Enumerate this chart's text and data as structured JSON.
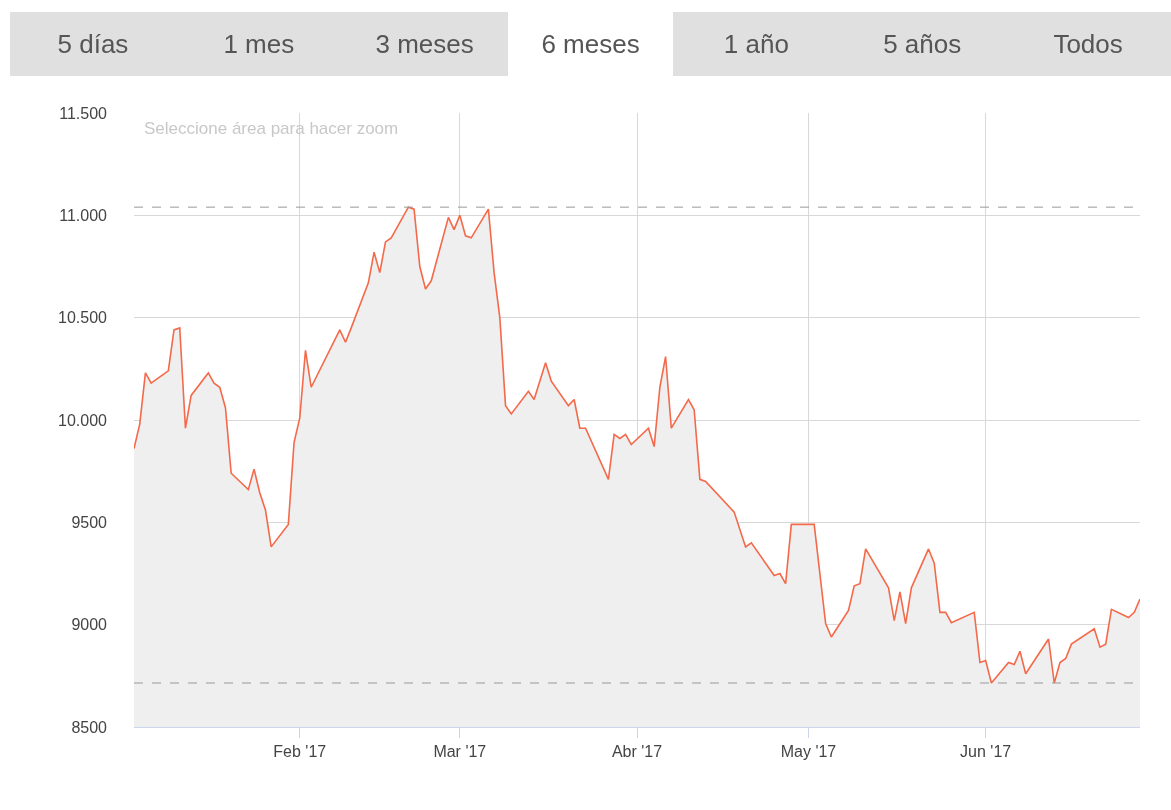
{
  "chart_data": {
    "type": "area",
    "annotations": [
      "Seleccione área para hacer zoom",
      "5 días",
      "1 mes",
      "3 meses",
      "6 meses",
      "1 año",
      "5 años",
      "Todos"
    ],
    "x": [
      "2017-01-03",
      "2017-01-04",
      "2017-01-05",
      "2017-01-06",
      "2017-01-09",
      "2017-01-10",
      "2017-01-11",
      "2017-01-12",
      "2017-01-13",
      "2017-01-16",
      "2017-01-17",
      "2017-01-18",
      "2017-01-19",
      "2017-01-20",
      "2017-01-23",
      "2017-01-24",
      "2017-01-25",
      "2017-01-26",
      "2017-01-27",
      "2017-01-30",
      "2017-01-31",
      "2017-02-01",
      "2017-02-02",
      "2017-02-03",
      "2017-02-08",
      "2017-02-09",
      "2017-02-10",
      "2017-02-13",
      "2017-02-14",
      "2017-02-15",
      "2017-02-16",
      "2017-02-17",
      "2017-02-20",
      "2017-02-21",
      "2017-02-22",
      "2017-02-23",
      "2017-02-24",
      "2017-02-27",
      "2017-02-28",
      "2017-03-01",
      "2017-03-02",
      "2017-03-03",
      "2017-03-06",
      "2017-03-07",
      "2017-03-08",
      "2017-03-09",
      "2017-03-10",
      "2017-03-13",
      "2017-03-14",
      "2017-03-16",
      "2017-03-17",
      "2017-03-20",
      "2017-03-21",
      "2017-03-22",
      "2017-03-23",
      "2017-03-27",
      "2017-03-28",
      "2017-03-29",
      "2017-03-30",
      "2017-03-31",
      "2017-04-03",
      "2017-04-04",
      "2017-04-05",
      "2017-04-06",
      "2017-04-07",
      "2017-04-10",
      "2017-04-11",
      "2017-04-12",
      "2017-04-13",
      "2017-04-18",
      "2017-04-20",
      "2017-04-21",
      "2017-04-25",
      "2017-04-26",
      "2017-04-27",
      "2017-04-28",
      "2017-05-02",
      "2017-05-04",
      "2017-05-05",
      "2017-05-08",
      "2017-05-09",
      "2017-05-10",
      "2017-05-11",
      "2017-05-15",
      "2017-05-16",
      "2017-05-17",
      "2017-05-18",
      "2017-05-19",
      "2017-05-22",
      "2017-05-23",
      "2017-05-24",
      "2017-05-25",
      "2017-05-26",
      "2017-05-30",
      "2017-05-31",
      "2017-06-01",
      "2017-06-02",
      "2017-06-05",
      "2017-06-06",
      "2017-06-07",
      "2017-06-08",
      "2017-06-12",
      "2017-06-13",
      "2017-06-14",
      "2017-06-15",
      "2017-06-16",
      "2017-06-20",
      "2017-06-21",
      "2017-06-22",
      "2017-06-23",
      "2017-06-26",
      "2017-06-27",
      "2017-06-28"
    ],
    "series": [
      {
        "color": "#f4694a",
        "values": [
          9860,
          9980,
          10230,
          10180,
          10240,
          10440,
          10450,
          9960,
          10120,
          10230,
          10180,
          10160,
          10060,
          9740,
          9660,
          9760,
          9645,
          9560,
          9380,
          9490,
          9890,
          10010,
          10340,
          10160,
          10440,
          10380,
          10450,
          10670,
          10820,
          10720,
          10870,
          10890,
          11040,
          11030,
          10750,
          10640,
          10680,
          10990,
          10930,
          11000,
          10900,
          10890,
          11030,
          10720,
          10500,
          10070,
          10030,
          10140,
          10100,
          10280,
          10190,
          10070,
          10100,
          9960,
          9960,
          9710,
          9930,
          9910,
          9930,
          9880,
          9960,
          9870,
          10160,
          10310,
          9960,
          10100,
          10050,
          9710,
          9700,
          9550,
          9380,
          9400,
          9240,
          9250,
          9200,
          9490,
          9490,
          9005,
          8940,
          9070,
          9190,
          9200,
          9370,
          9180,
          9020,
          9160,
          9005,
          9180,
          9370,
          9300,
          9060,
          9060,
          9010,
          9060,
          8815,
          8825,
          8715,
          8815,
          8805,
          8870,
          8760,
          8930,
          8715,
          8815,
          8835,
          8905,
          8980,
          8890,
          8905,
          9075,
          9035,
          9060,
          9125
        ]
      }
    ],
    "xlim": [
      "2017-01-03",
      "2017-06-28"
    ],
    "xticks": [
      {
        "value": "2017-02-01",
        "label": "Feb '17"
      },
      {
        "value": "2017-03-01",
        "label": "Mar '17"
      },
      {
        "value": "2017-04-01",
        "label": "Abr '17"
      },
      {
        "value": "2017-05-01",
        "label": "May '17"
      },
      {
        "value": "2017-06-01",
        "label": "Jun '17"
      }
    ],
    "ylim": [
      8500,
      11500
    ],
    "yticks": [
      8500,
      9000,
      9500,
      {
        "value": 10000,
        "label": "10.000"
      },
      {
        "value": 10500,
        "label": "10.500"
      },
      {
        "value": 11000,
        "label": "11.000"
      },
      {
        "value": 11500,
        "label": "11.500"
      }
    ],
    "grid": true,
    "ref_lines": [
      {
        "axis": "y",
        "value": 11040,
        "color": "#999999",
        "line_style": "dashed"
      },
      {
        "axis": "y",
        "value": 8715,
        "color": "#999999",
        "line_style": "dashed"
      }
    ]
  }
}
